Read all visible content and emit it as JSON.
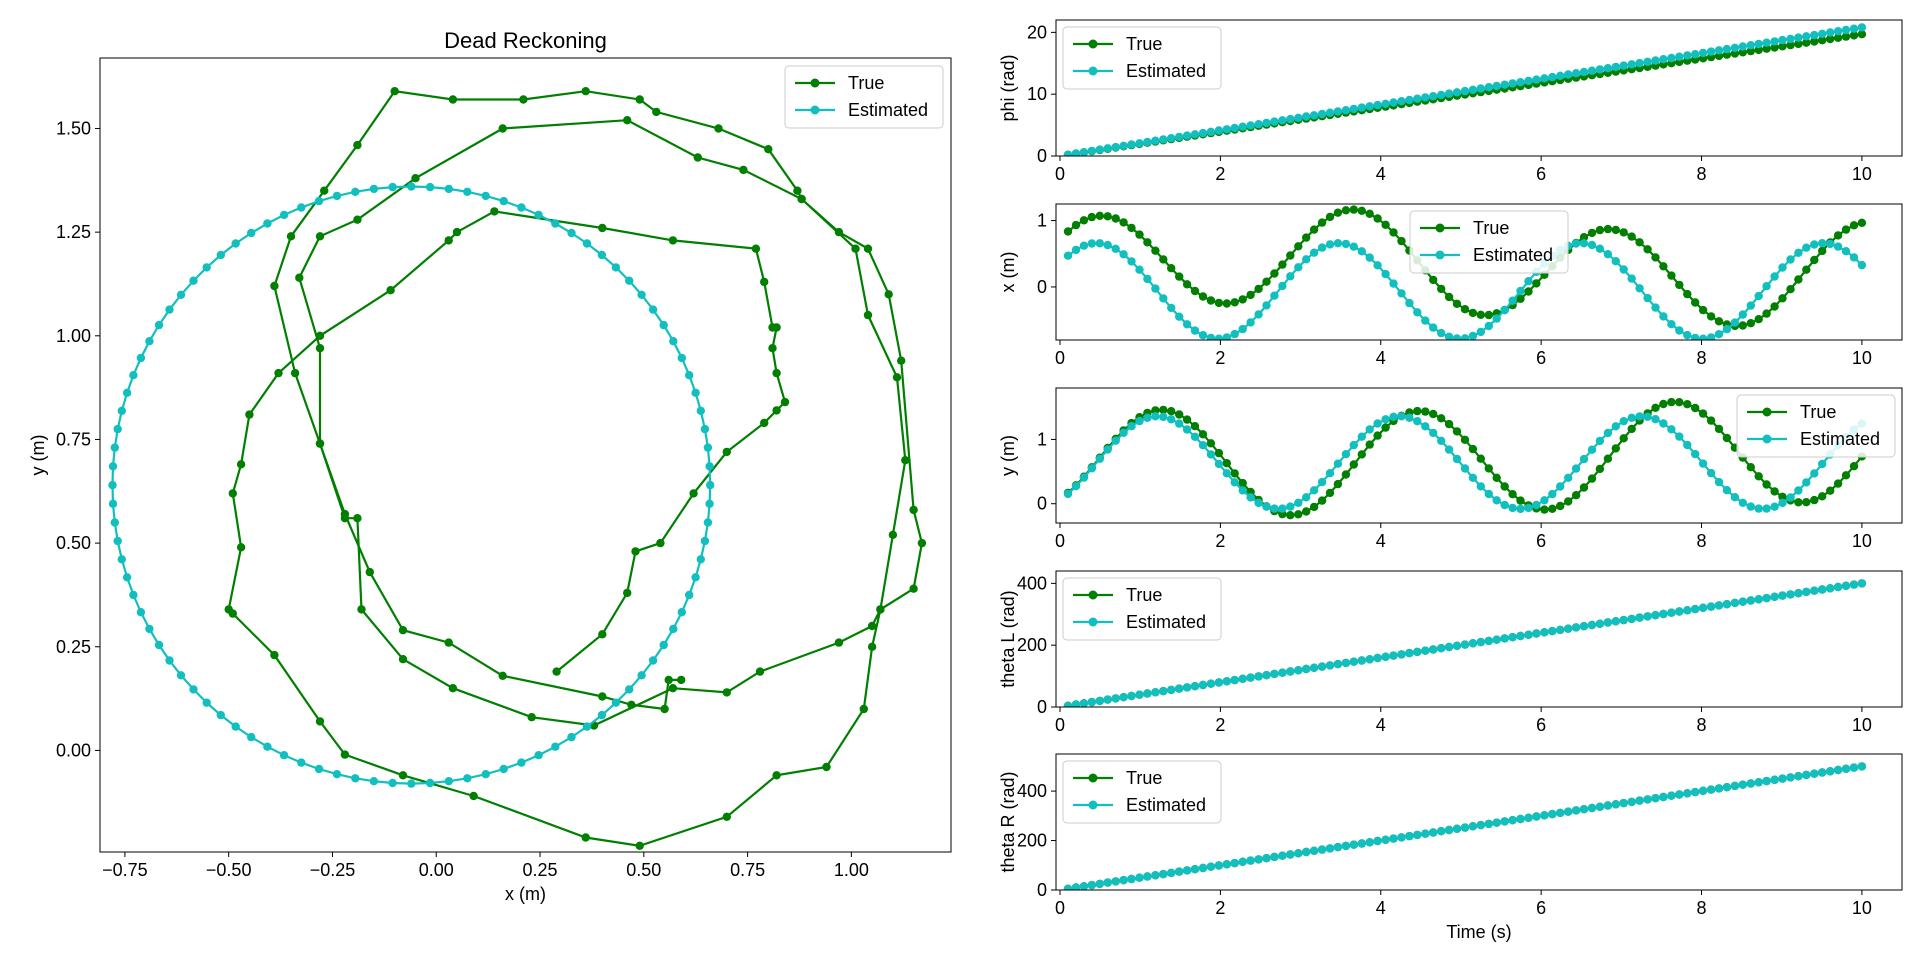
{
  "colors": {
    "true": "#007f00",
    "estimated": "#12bfbf",
    "axes": "#000000",
    "background": "#ffffff"
  },
  "chart_data": [
    {
      "id": "trajectory",
      "type": "line",
      "markers": "circle",
      "title": "Dead Reckoning",
      "xlabel": "x (m)",
      "ylabel": "y (m)",
      "xlim": [
        -0.81,
        1.24
      ],
      "ylim": [
        -0.245,
        1.67
      ],
      "xticks": [
        -0.75,
        -0.5,
        -0.25,
        0.0,
        0.25,
        0.5,
        0.75,
        1.0
      ],
      "xtick_labels": [
        "−0.75",
        "−0.50",
        "−0.25",
        "0.00",
        "0.25",
        "0.50",
        "0.75",
        "1.00"
      ],
      "yticks": [
        0.0,
        0.25,
        0.5,
        0.75,
        1.0,
        1.25,
        1.5
      ],
      "ytick_labels": [
        "0.00",
        "0.25",
        "0.50",
        "0.75",
        "1.00",
        "1.25",
        "1.50"
      ],
      "grid": false,
      "legend": "upper right",
      "series": [
        {
          "name": "True",
          "color": "#007f00",
          "points": [
            [
              0.29,
              0.19
            ],
            [
              0.4,
              0.28
            ],
            [
              0.46,
              0.38
            ],
            [
              0.48,
              0.48
            ],
            [
              0.54,
              0.5
            ],
            [
              0.62,
              0.62
            ],
            [
              0.7,
              0.72
            ],
            [
              0.79,
              0.79
            ],
            [
              0.82,
              0.82
            ],
            [
              0.84,
              0.84
            ],
            [
              0.82,
              0.91
            ],
            [
              0.81,
              0.97
            ],
            [
              0.82,
              1.02
            ],
            [
              0.81,
              1.02
            ],
            [
              0.79,
              1.13
            ],
            [
              0.77,
              1.21
            ],
            [
              0.57,
              1.23
            ],
            [
              0.4,
              1.26
            ],
            [
              0.14,
              1.3
            ],
            [
              0.05,
              1.25
            ],
            [
              0.03,
              1.23
            ],
            [
              -0.11,
              1.11
            ],
            [
              -0.28,
              1.0
            ],
            [
              -0.38,
              0.91
            ],
            [
              -0.45,
              0.81
            ],
            [
              -0.47,
              0.69
            ],
            [
              -0.49,
              0.62
            ],
            [
              -0.47,
              0.49
            ],
            [
              -0.5,
              0.34
            ],
            [
              -0.49,
              0.33
            ],
            [
              -0.39,
              0.23
            ],
            [
              -0.28,
              0.07
            ],
            [
              -0.22,
              -0.01
            ],
            [
              -0.08,
              -0.06
            ],
            [
              0.09,
              -0.11
            ],
            [
              0.36,
              -0.21
            ],
            [
              0.49,
              -0.23
            ],
            [
              0.7,
              -0.16
            ],
            [
              0.82,
              -0.06
            ],
            [
              0.94,
              -0.04
            ],
            [
              1.03,
              0.1
            ],
            [
              1.05,
              0.25
            ],
            [
              1.07,
              0.34
            ],
            [
              1.1,
              0.52
            ],
            [
              1.13,
              0.7
            ],
            [
              1.11,
              0.9
            ],
            [
              1.04,
              1.05
            ],
            [
              1.01,
              1.21
            ],
            [
              0.88,
              1.33
            ],
            [
              0.87,
              1.35
            ],
            [
              0.8,
              1.45
            ],
            [
              0.68,
              1.5
            ],
            [
              0.53,
              1.54
            ],
            [
              0.49,
              1.57
            ],
            [
              0.36,
              1.59
            ],
            [
              0.21,
              1.57
            ],
            [
              0.04,
              1.57
            ],
            [
              -0.1,
              1.59
            ],
            [
              -0.19,
              1.46
            ],
            [
              -0.27,
              1.35
            ],
            [
              -0.35,
              1.24
            ],
            [
              -0.39,
              1.12
            ],
            [
              -0.34,
              0.91
            ],
            [
              -0.28,
              0.74
            ],
            [
              -0.22,
              0.56
            ],
            [
              -0.19,
              0.56
            ],
            [
              -0.18,
              0.34
            ],
            [
              -0.08,
              0.22
            ],
            [
              0.04,
              0.15
            ],
            [
              0.23,
              0.08
            ],
            [
              0.38,
              0.06
            ],
            [
              0.57,
              0.15
            ],
            [
              0.7,
              0.14
            ],
            [
              0.78,
              0.19
            ],
            [
              0.97,
              0.26
            ],
            [
              1.05,
              0.3
            ],
            [
              1.07,
              0.34
            ],
            [
              1.15,
              0.39
            ],
            [
              1.17,
              0.5
            ],
            [
              1.15,
              0.58
            ],
            [
              1.12,
              0.94
            ],
            [
              1.09,
              1.1
            ],
            [
              1.04,
              1.21
            ],
            [
              0.97,
              1.25
            ],
            [
              0.88,
              1.33
            ],
            [
              0.74,
              1.4
            ],
            [
              0.63,
              1.43
            ],
            [
              0.46,
              1.52
            ],
            [
              0.16,
              1.5
            ],
            [
              -0.05,
              1.38
            ],
            [
              -0.19,
              1.28
            ],
            [
              -0.28,
              1.24
            ],
            [
              -0.33,
              1.14
            ],
            [
              -0.28,
              0.97
            ],
            [
              -0.28,
              0.74
            ],
            [
              -0.22,
              0.57
            ],
            [
              -0.16,
              0.43
            ],
            [
              -0.08,
              0.29
            ],
            [
              0.03,
              0.26
            ],
            [
              0.16,
              0.18
            ],
            [
              0.4,
              0.13
            ],
            [
              0.47,
              0.11
            ],
            [
              0.55,
              0.1
            ],
            [
              0.56,
              0.17
            ],
            [
              0.59,
              0.17
            ]
          ]
        },
        {
          "name": "Estimated",
          "color": "#12bfbf",
          "circle": {
            "cx": -0.06,
            "cy": 0.64,
            "r": 0.72
          },
          "points_note_omitted": true
        }
      ]
    },
    {
      "id": "phi",
      "type": "line",
      "markers": "circle",
      "title": "",
      "xlabel": "",
      "ylabel": "phi (rad)",
      "xlim": [
        -0.05,
        10.5
      ],
      "ylim": [
        0,
        22
      ],
      "xticks": [
        0,
        2,
        4,
        6,
        8,
        10
      ],
      "xtick_labels": [
        "0",
        "2",
        "4",
        "6",
        "8",
        "10"
      ],
      "yticks": [
        0,
        10,
        20
      ],
      "ytick_labels": [
        "0",
        "10",
        "20"
      ],
      "legend": "upper left",
      "series": [
        {
          "name": "True",
          "color": "#007f00",
          "fn": "linear",
          "a": 0.0,
          "b": 1.97
        },
        {
          "name": "Estimated",
          "color": "#12bfbf",
          "fn": "linear",
          "a": 0.0,
          "b": 2.08
        }
      ]
    },
    {
      "id": "x",
      "type": "line",
      "markers": "circle",
      "title": "",
      "xlabel": "",
      "ylabel": "x (m)",
      "xlim": [
        -0.05,
        10.5
      ],
      "ylim": [
        -0.8,
        1.25
      ],
      "xticks": [
        0,
        2,
        4,
        6,
        8,
        10
      ],
      "xtick_labels": [
        "0",
        "2",
        "4",
        "6",
        "8",
        "10"
      ],
      "yticks": [
        0,
        1
      ],
      "ytick_labels": [
        "0",
        "1"
      ],
      "legend": "upper center",
      "series": [
        {
          "name": "True",
          "color": "#007f00",
          "fn": "x_true"
        },
        {
          "name": "Estimated",
          "color": "#12bfbf",
          "fn": "sin",
          "offset": -0.06,
          "amp": 0.72,
          "omega": 2.08,
          "phase": 0.62
        }
      ]
    },
    {
      "id": "y",
      "type": "line",
      "markers": "circle",
      "title": "",
      "xlabel": "",
      "ylabel": "y (m)",
      "xlim": [
        -0.05,
        10.5
      ],
      "ylim": [
        -0.3,
        1.8
      ],
      "xticks": [
        0,
        2,
        4,
        6,
        8,
        10
      ],
      "xtick_labels": [
        "0",
        "2",
        "4",
        "6",
        "8",
        "10"
      ],
      "yticks": [
        0,
        1
      ],
      "ytick_labels": [
        "0",
        "1"
      ],
      "legend": "upper right",
      "series": [
        {
          "name": "True",
          "color": "#007f00",
          "fn": "y_true"
        },
        {
          "name": "Estimated",
          "color": "#12bfbf",
          "fn": "cos",
          "offset": 0.64,
          "amp": 0.72,
          "omega": 2.08,
          "phase": 0.62
        }
      ]
    },
    {
      "id": "thetaL",
      "type": "line",
      "markers": "circle",
      "title": "",
      "xlabel": "",
      "ylabel": "theta L (rad)",
      "xlim": [
        -0.05,
        10.5
      ],
      "ylim": [
        0,
        440
      ],
      "xticks": [
        0,
        2,
        4,
        6,
        8,
        10
      ],
      "xtick_labels": [
        "0",
        "2",
        "4",
        "6",
        "8",
        "10"
      ],
      "yticks": [
        0,
        200,
        400
      ],
      "ytick_labels": [
        "0",
        "200",
        "400"
      ],
      "legend": "upper left",
      "series": [
        {
          "name": "True",
          "color": "#007f00",
          "fn": "linear",
          "a": 0,
          "b": 40
        },
        {
          "name": "Estimated",
          "color": "#12bfbf",
          "fn": "linear",
          "a": 0,
          "b": 40
        }
      ]
    },
    {
      "id": "thetaR",
      "type": "line",
      "markers": "circle",
      "title": "",
      "xlabel": "Time (s)",
      "ylabel": "theta R (rad)",
      "xlim": [
        -0.05,
        10.5
      ],
      "ylim": [
        0,
        550
      ],
      "xticks": [
        0,
        2,
        4,
        6,
        8,
        10
      ],
      "xtick_labels": [
        "0",
        "2",
        "4",
        "6",
        "8",
        "10"
      ],
      "yticks": [
        0,
        200,
        400
      ],
      "ytick_labels": [
        "0",
        "200",
        "400"
      ],
      "legend": "upper left",
      "series": [
        {
          "name": "True",
          "color": "#007f00",
          "fn": "linear",
          "a": 0,
          "b": 50
        },
        {
          "name": "Estimated",
          "color": "#12bfbf",
          "fn": "linear",
          "a": 0,
          "b": 50
        }
      ]
    }
  ]
}
